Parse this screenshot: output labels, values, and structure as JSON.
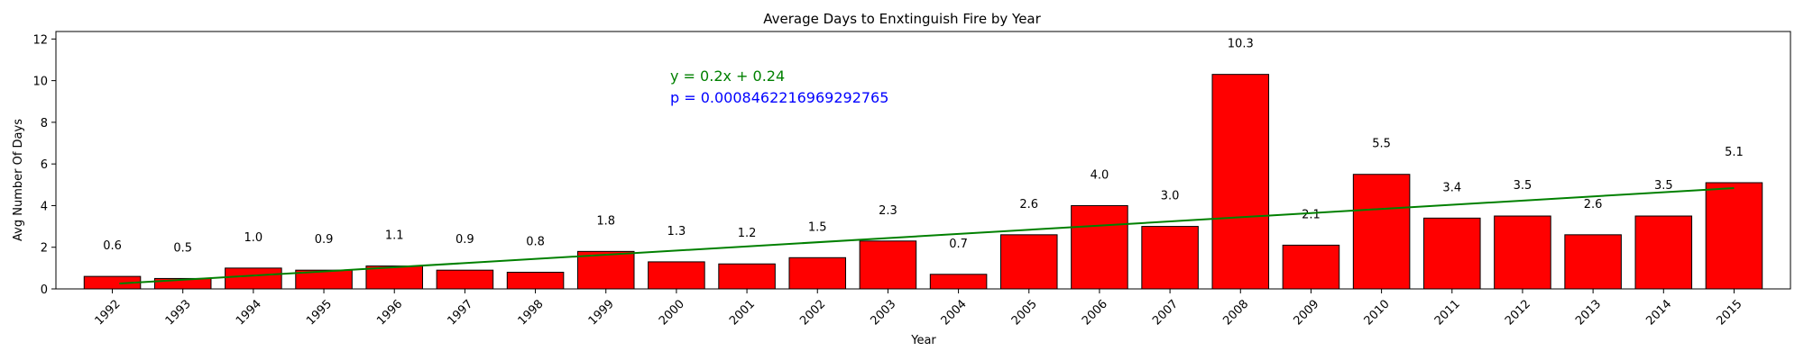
{
  "chart_data": {
    "type": "bar",
    "title": "Average Days to Enxtinguish Fire by Year",
    "xlabel": "Year",
    "ylabel": "Avg Number Of Days",
    "categories": [
      "1992",
      "1993",
      "1994",
      "1995",
      "1996",
      "1997",
      "1998",
      "1999",
      "2000",
      "2001",
      "2002",
      "2003",
      "2004",
      "2005",
      "2006",
      "2007",
      "2008",
      "2009",
      "2010",
      "2011",
      "2012",
      "2013",
      "2014",
      "2015"
    ],
    "values": [
      0.6,
      0.5,
      1.0,
      0.9,
      1.1,
      0.9,
      0.8,
      1.8,
      1.3,
      1.2,
      1.5,
      2.3,
      0.7,
      2.6,
      4.0,
      3.0,
      10.3,
      2.1,
      5.5,
      3.4,
      3.5,
      2.6,
      3.5,
      5.1
    ],
    "value_labels": [
      "0.6",
      "0.5",
      "1.0",
      "0.9",
      "1.1",
      "0.9",
      "0.8",
      "1.8",
      "1.3",
      "1.2",
      "1.5",
      "2.3",
      "0.7",
      "2.6",
      "4.0",
      "3.0",
      "10.3",
      "2.1",
      "5.5",
      "3.4",
      "3.5",
      "2.6",
      "3.5",
      "5.1"
    ],
    "yticks": [
      0,
      2,
      4,
      6,
      8,
      10,
      12
    ],
    "ylim": [
      0,
      12.36
    ],
    "bar_color": "#ff0000",
    "trend_color": "#008000",
    "trendline": {
      "slope": 0.2,
      "intercept": 0.24,
      "x_start_index": 0.1,
      "x_end_index": 23
    },
    "annotations": {
      "equation": "y = 0.2x + 0.24",
      "equation_color": "#008000",
      "p_value": "p = 0.0008462216969292765",
      "p_value_color": "#0000ff"
    },
    "grid": false,
    "legend": "none"
  }
}
